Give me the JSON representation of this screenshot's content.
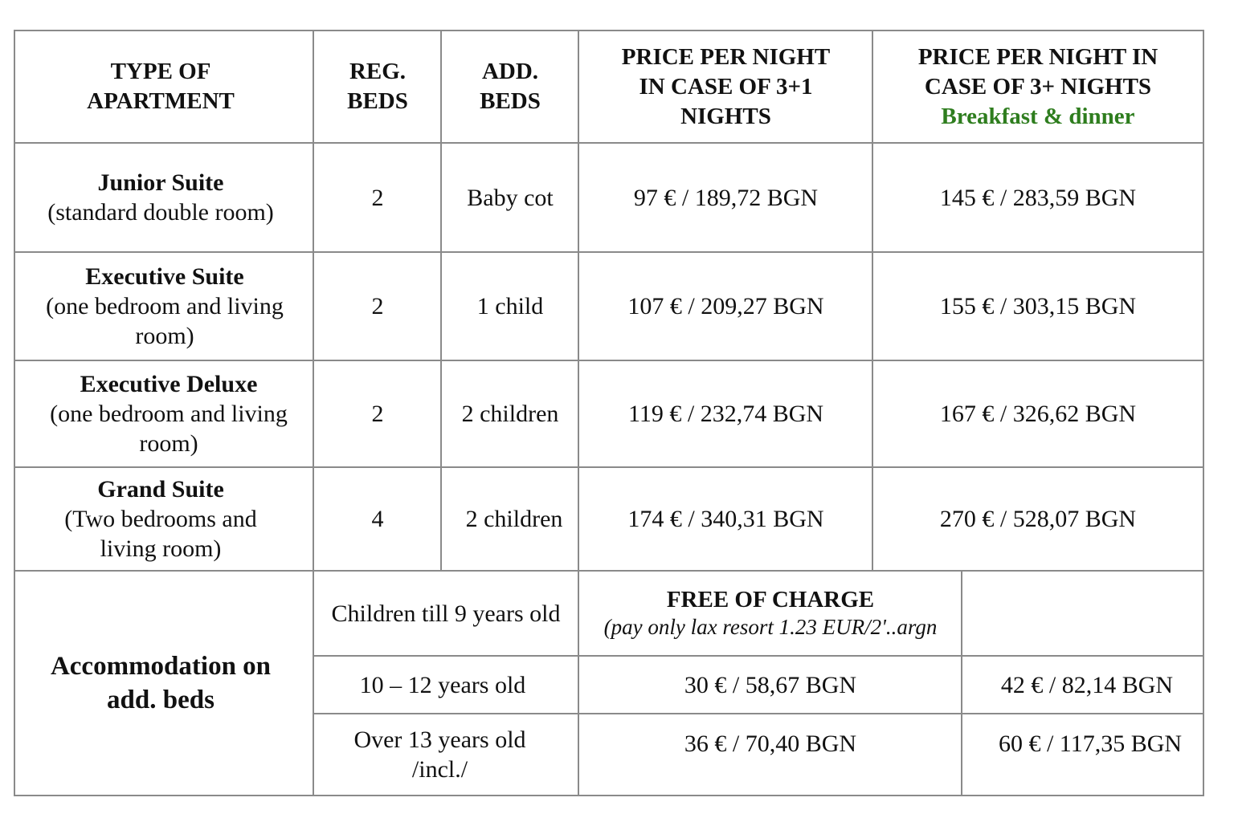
{
  "header": {
    "type": "TYPE OF APARTMENT",
    "reg_beds": "REG. BEDS",
    "add_beds": "ADD. BEDS",
    "price_3_1": "PRICE PER NIGHT IN CASE OF 3+1 NIGHTS",
    "price_3plus": "PRICE PER NIGHT IN CASE OF 3+ NIGHTS",
    "price_3plus_note": "Breakfast & dinner"
  },
  "rows": [
    {
      "name": "Junior Suite",
      "desc": "(standard double room)",
      "reg": "2",
      "add": "Baby cot",
      "p1": "97 € / 189,72 BGN",
      "p2": "145 € / 283,59 BGN"
    },
    {
      "name": "Executive Suite",
      "desc": "(one bedroom and living room)",
      "reg": "2",
      "add": "1 child",
      "p1": "107 € / 209,27 BGN",
      "p2": "155 € / 303,15 BGN"
    },
    {
      "name": "Executive Deluxe",
      "desc": "(one bedroom and living room)",
      "reg": "2",
      "add": "2 children",
      "p1": "119 € / 232,74 BGN",
      "p2": "167 € / 326,62 BGN"
    },
    {
      "name": "Grand Suite",
      "desc": "(Two bedrooms and living room)",
      "reg": "4",
      "add": "2 children",
      "p1": "174 € / 340,31 BGN",
      "p2": "270 € / 528,07 BGN"
    }
  ],
  "extra": {
    "title": "Accommodation on add. beds",
    "rows": [
      {
        "age": "Children till 9 years old",
        "p1": "FREE OF CHARGE",
        "p1_note": "(pay only lax resort 1.23 EUR/2'..argn",
        "p2": ""
      },
      {
        "age": "10 – 12 years old",
        "p1": "30 € / 58,67 BGN",
        "p2": "42 € / 82,14 BGN"
      },
      {
        "age": "Over 13 years old /incl./",
        "p1": "36 € / 70,40 BGN",
        "p2": "60 € / 117,35 BGN"
      }
    ]
  },
  "colors": {
    "accent_green": "#2e7d1e",
    "grid": "#8a8a8a"
  }
}
